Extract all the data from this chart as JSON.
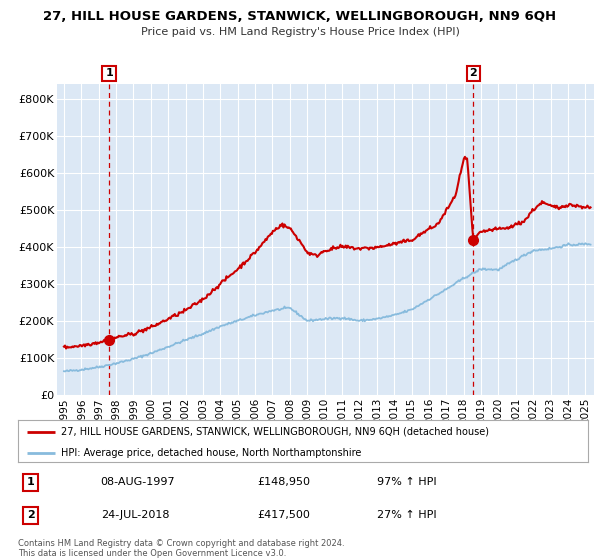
{
  "title": "27, HILL HOUSE GARDENS, STANWICK, WELLINGBOROUGH, NN9 6QH",
  "subtitle": "Price paid vs. HM Land Registry's House Price Index (HPI)",
  "xlim": [
    1994.6,
    2025.5
  ],
  "ylim": [
    0,
    840000
  ],
  "yticks": [
    0,
    100000,
    200000,
    300000,
    400000,
    500000,
    600000,
    700000,
    800000
  ],
  "ytick_labels": [
    "£0",
    "£100K",
    "£200K",
    "£300K",
    "£400K",
    "£500K",
    "£600K",
    "£700K",
    "£800K"
  ],
  "xticks": [
    1995,
    1996,
    1997,
    1998,
    1999,
    2000,
    2001,
    2002,
    2003,
    2004,
    2005,
    2006,
    2007,
    2008,
    2009,
    2010,
    2011,
    2012,
    2013,
    2014,
    2015,
    2016,
    2017,
    2018,
    2019,
    2020,
    2021,
    2022,
    2023,
    2024,
    2025
  ],
  "sale1_x": 1997.6,
  "sale1_y": 148950,
  "sale2_x": 2018.55,
  "sale2_y": 417500,
  "sale1_date": "08-AUG-1997",
  "sale1_price": "£148,950",
  "sale1_hpi": "97% ↑ HPI",
  "sale2_date": "24-JUL-2018",
  "sale2_price": "£417,500",
  "sale2_hpi": "27% ↑ HPI",
  "line_color_red": "#cc0000",
  "line_color_blue": "#88bbdd",
  "bg_color": "#dce8f5",
  "grid_color": "#ffffff",
  "legend_label_red": "27, HILL HOUSE GARDENS, STANWICK, WELLINGBOROUGH, NN9 6QH (detached house)",
  "legend_label_blue": "HPI: Average price, detached house, North Northamptonshire",
  "footer": "Contains HM Land Registry data © Crown copyright and database right 2024.\nThis data is licensed under the Open Government Licence v3.0."
}
